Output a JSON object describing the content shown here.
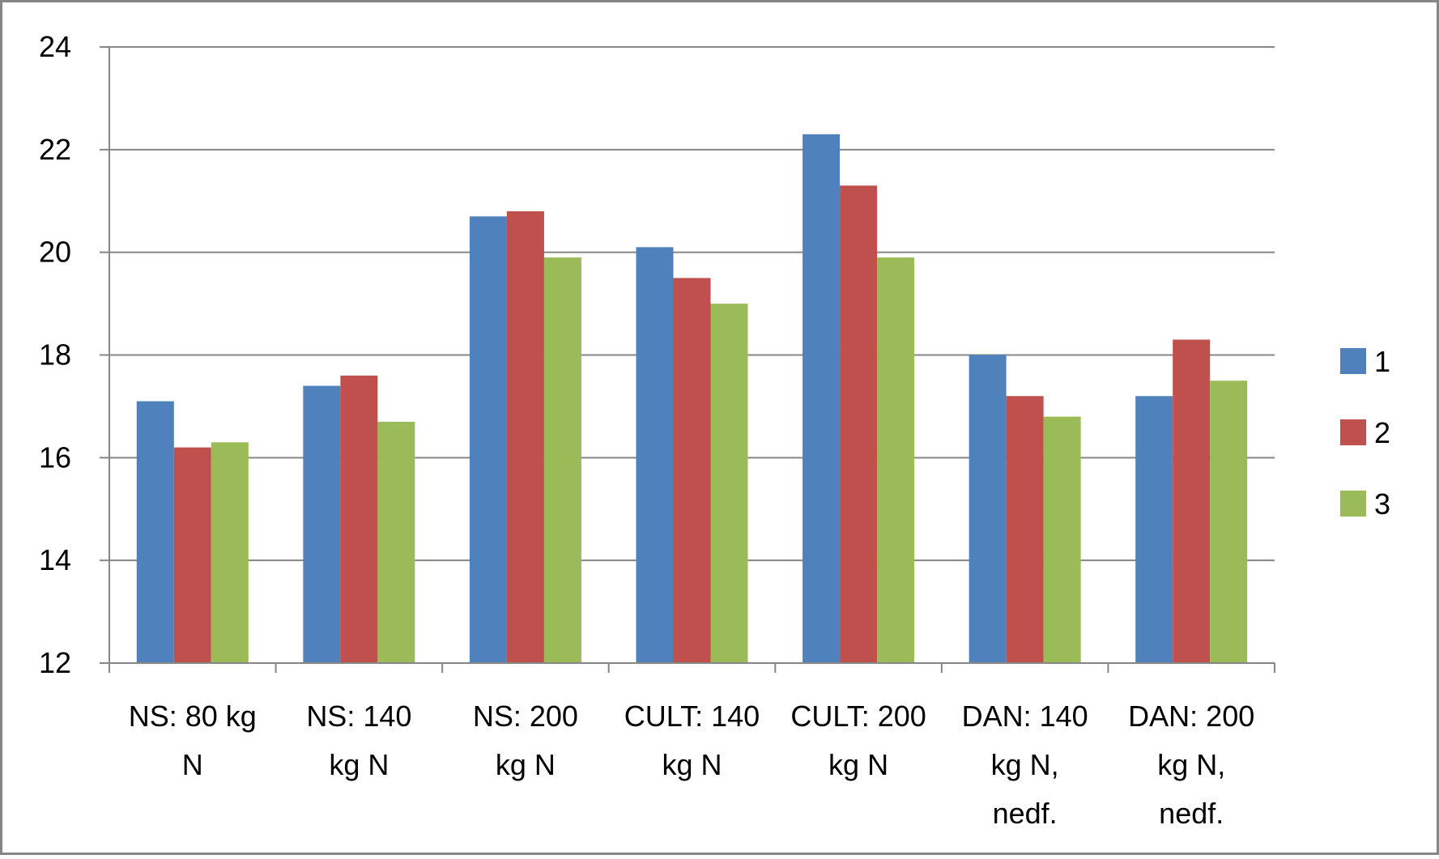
{
  "chart_data": {
    "type": "bar",
    "title": "",
    "xlabel": "",
    "ylabel": "",
    "ylim": [
      12,
      24
    ],
    "yticks": [
      "12",
      "14",
      "16",
      "18",
      "20",
      "22",
      "24"
    ],
    "grid": true,
    "legend_position": "right",
    "categories": [
      [
        "NS: 80 kg",
        "N"
      ],
      [
        "NS: 140",
        "kg N"
      ],
      [
        "NS: 200",
        "kg N"
      ],
      [
        "CULT: 140",
        "kg N"
      ],
      [
        "CULT: 200",
        "kg N"
      ],
      [
        "DAN: 140",
        "kg N,",
        "nedf."
      ],
      [
        "DAN: 200",
        "kg N,",
        "nedf."
      ]
    ],
    "series": [
      {
        "name": "1",
        "color": "#4F81BD",
        "values": [
          17.1,
          17.4,
          20.7,
          20.1,
          22.3,
          18.0,
          17.2
        ]
      },
      {
        "name": "2",
        "color": "#C0504D",
        "values": [
          16.2,
          17.6,
          20.8,
          19.5,
          21.3,
          17.2,
          18.3
        ]
      },
      {
        "name": "3",
        "color": "#9BBB59",
        "values": [
          16.3,
          16.7,
          19.9,
          19.0,
          19.9,
          16.8,
          17.5
        ]
      }
    ]
  }
}
